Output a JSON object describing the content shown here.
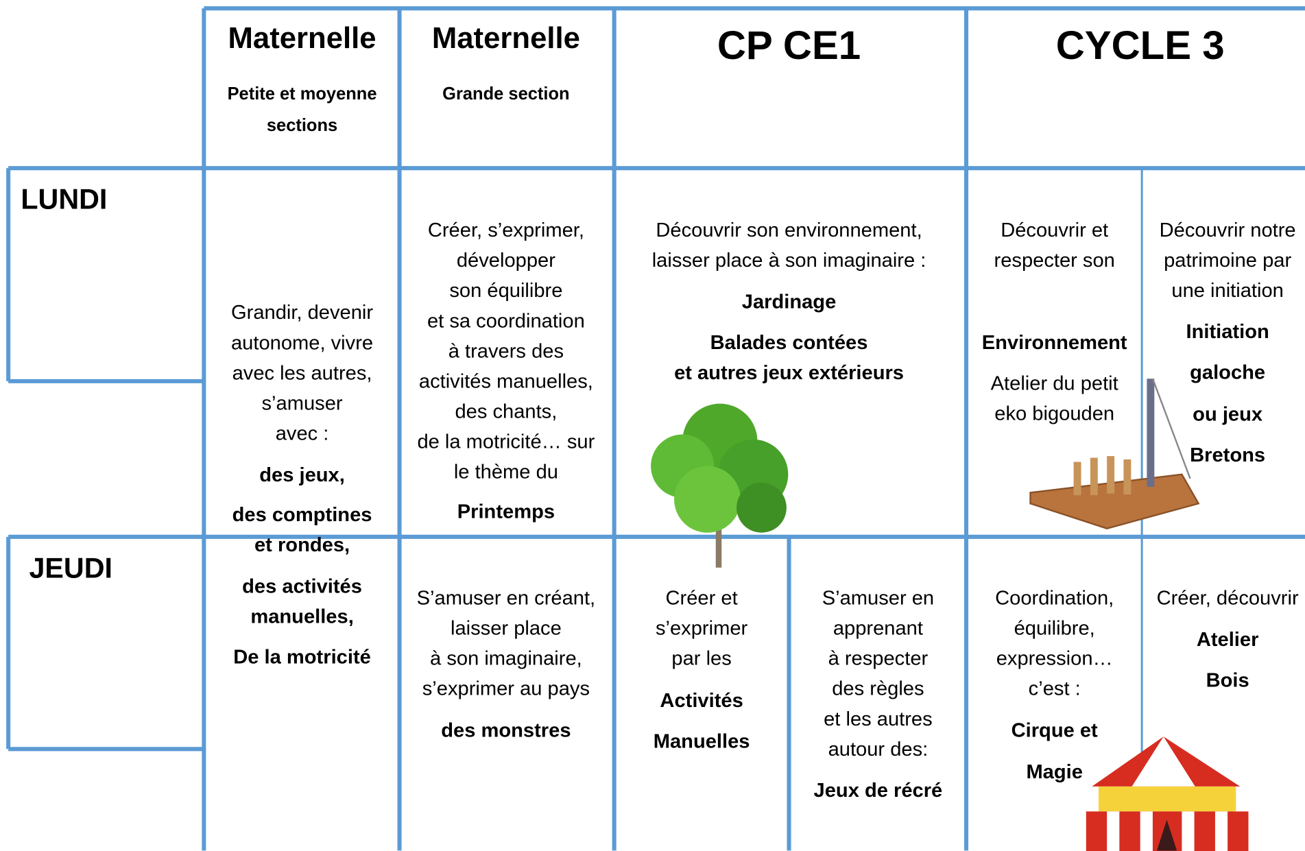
{
  "header": {
    "columns": [
      {
        "title": "Maternelle",
        "subtitle": [
          "Petite et moyenne",
          "sections"
        ]
      },
      {
        "title": "Maternelle",
        "subtitle": [
          "Grande  section"
        ]
      },
      {
        "title": "CP CE1"
      },
      {
        "title": "CYCLE 3"
      }
    ]
  },
  "rows": [
    {
      "day": "LUNDI"
    },
    {
      "day": "JEUDI"
    }
  ],
  "cells": [
    {
      "paragraphs": [
        {
          "bold": false,
          "lines": [
            "Grandir, devenir",
            "autonome, vivre",
            "avec  les autres,",
            "s’amuser",
            "avec :"
          ]
        },
        {
          "bold": true,
          "lines": [
            "des jeux,"
          ]
        },
        {
          "bold": true,
          "lines": [
            "des comptines",
            "et rondes,"
          ]
        },
        {
          "bold": true,
          "lines": [
            "des activités",
            "manuelles,"
          ]
        },
        {
          "bold": true,
          "lines": [
            "De la motricité"
          ]
        }
      ]
    },
    {
      "paragraphs": [
        {
          "bold": false,
          "lines": [
            "Créer, s’exprimer,",
            "développer",
            "son équilibre",
            "et sa coordination",
            "à travers des",
            "activités manuelles,",
            "des chants,",
            "de la motricité… sur",
            "le thème du"
          ]
        },
        {
          "bold": true,
          "lines": [
            "Printemps"
          ]
        }
      ]
    },
    {
      "paragraphs": [
        {
          "bold": false,
          "lines": [
            "Découvrir son environnement,",
            "laisser place à son imaginaire :"
          ]
        },
        {
          "bold": true,
          "lines": [
            "Jardinage"
          ]
        },
        {
          "bold": true,
          "lines": [
            "Balades contées",
            "et  autres jeux extérieurs"
          ]
        }
      ]
    },
    {
      "paragraphs": [
        {
          "bold": false,
          "lines": [
            "Découvrir et",
            "respecter son"
          ]
        },
        {
          "bold": true,
          "lines": [
            "Environnement"
          ]
        },
        {
          "bold": false,
          "lines": [
            "Atelier du petit",
            "eko bigouden"
          ]
        }
      ]
    },
    {
      "paragraphs": [
        {
          "bold": false,
          "lines": [
            "Découvrir notre",
            "patrimoine par",
            "une initiation"
          ]
        },
        {
          "bold": true,
          "lines": [
            "Initiation"
          ]
        },
        {
          "bold": true,
          "lines": [
            "galoche"
          ]
        },
        {
          "bold": true,
          "lines": [
            "ou jeux"
          ]
        },
        {
          "bold": true,
          "lines": [
            "Bretons"
          ]
        }
      ]
    },
    {
      "paragraphs": [
        {
          "bold": false,
          "lines": [
            "S’amuser en créant,",
            "laisser place",
            "à son imaginaire,",
            "s’exprimer au pays"
          ]
        },
        {
          "bold": true,
          "lines": [
            "des monstres"
          ]
        }
      ]
    },
    {
      "paragraphs": [
        {
          "bold": false,
          "lines": [
            "Créer et",
            "s’exprimer",
            "par les"
          ]
        },
        {
          "bold": true,
          "lines": [
            "Activités"
          ]
        },
        {
          "bold": true,
          "lines": [
            "Manuelles"
          ]
        }
      ]
    },
    {
      "paragraphs": [
        {
          "bold": false,
          "lines": [
            "S’amuser en",
            "apprenant",
            "à respecter",
            "des règles",
            "et les autres",
            "autour des:"
          ]
        },
        {
          "bold": true,
          "lines": [
            "Jeux de récré"
          ]
        }
      ]
    },
    {
      "paragraphs": [
        {
          "bold": false,
          "lines": [
            "Coordination,",
            "équilibre,",
            "expression…",
            "c’est :"
          ]
        },
        {
          "bold": true,
          "lines": [
            "Cirque et"
          ]
        },
        {
          "bold": true,
          "lines": [
            "Magie"
          ]
        }
      ]
    },
    {
      "paragraphs": [
        {
          "bold": false,
          "lines": [
            "Créer, découvrir"
          ]
        },
        {
          "bold": true,
          "lines": [
            "Atelier"
          ]
        },
        {
          "bold": true,
          "lines": [
            "Bois"
          ]
        }
      ]
    }
  ]
}
